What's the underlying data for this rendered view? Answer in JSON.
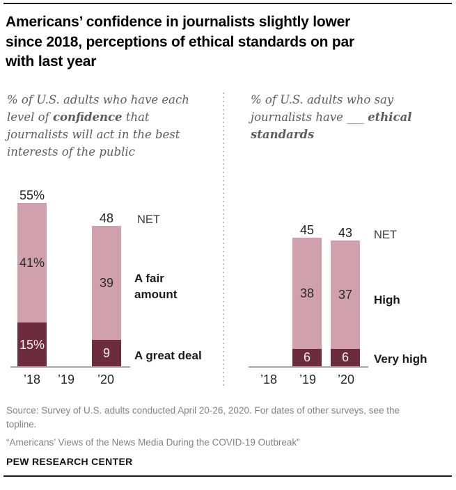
{
  "header": {
    "title_lines": [
      "Americans’ confidence in journalists slightly lower",
      "since 2018, perceptions of ethical standards on par",
      "with last year"
    ]
  },
  "subtitle_left": {
    "l1": "% of U.S. adults who have each",
    "l2a": "level of ",
    "l2b": "confidence",
    "l2c": " that",
    "l3": "journalists will act in the best",
    "l4": "interests of the public"
  },
  "subtitle_right": {
    "l1": "% of U.S. adults who say",
    "l2a": "journalists have ___ ",
    "l2b": "ethical",
    "l3b": "standards"
  },
  "chart_data": [
    {
      "type": "bar",
      "stacked": true,
      "panel": "confidence",
      "title": "% of U.S. adults who have each level of confidence that journalists will act in the best interests of the public",
      "categories": [
        "’18",
        "’19",
        "’20"
      ],
      "series": [
        {
          "name": "A fair amount",
          "color": "#d0a1ad",
          "values": [
            41,
            null,
            39
          ]
        },
        {
          "name": "A great deal",
          "color": "#6d2c3d",
          "values": [
            15,
            null,
            9
          ]
        }
      ],
      "net": {
        "label": "NET",
        "values": [
          55,
          null,
          48
        ]
      },
      "ylim": [
        0,
        60
      ],
      "grid": false,
      "bars": [
        {
          "year": "’18",
          "net": 55,
          "net_label": "55%",
          "fair": 41,
          "fair_label": "41%",
          "great": 15,
          "great_label": "15%"
        },
        {
          "year": "’19"
        },
        {
          "year": "’20",
          "net": 48,
          "net_label": "48",
          "fair": 39,
          "fair_label": "39",
          "great": 9,
          "great_label": "9"
        }
      ],
      "side_labels": {
        "net": "NET",
        "fair": "A fair amount",
        "great": "A great deal"
      }
    },
    {
      "type": "bar",
      "stacked": true,
      "panel": "ethical-standards",
      "title": "% of U.S. adults who say journalists have ___ ethical standards",
      "categories": [
        "’18",
        "’19",
        "’20"
      ],
      "series": [
        {
          "name": "High",
          "color": "#d0a1ad",
          "values": [
            null,
            38,
            37
          ]
        },
        {
          "name": "Very high",
          "color": "#6d2c3d",
          "values": [
            null,
            6,
            6
          ]
        }
      ],
      "net": {
        "label": "NET",
        "values": [
          null,
          45,
          43
        ]
      },
      "ylim": [
        0,
        60
      ],
      "grid": false,
      "bars": [
        {
          "year": "’18"
        },
        {
          "year": "’19",
          "net": 45,
          "net_label": "45",
          "high": 38,
          "high_label": "38",
          "very": 6,
          "very_label": "6"
        },
        {
          "year": "’20",
          "net": 43,
          "net_label": "43",
          "high": 37,
          "high_label": "37",
          "very": 6,
          "very_label": "6"
        }
      ],
      "side_labels": {
        "net": "NET",
        "high": "High",
        "very": "Very high"
      }
    }
  ],
  "footer": {
    "source": "Source: Survey of U.S. adults conducted April 20-26, 2020. For dates of other surveys, see the topline.",
    "report": "“Americans’ Views of the News Media During the COVID-19 Outbreak”",
    "brand": "PEW RESEARCH CENTER"
  }
}
